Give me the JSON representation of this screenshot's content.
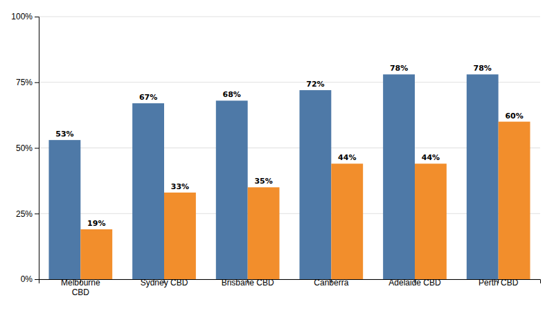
{
  "chart_data": {
    "type": "bar",
    "categories": [
      "Melbourne\nCBD",
      "Sydney CBD",
      "Brisbane CBD",
      "Canberra",
      "Adelaide CBD",
      "Perth CBD"
    ],
    "series": [
      {
        "values": [
          53,
          67,
          68,
          72,
          78,
          78
        ],
        "value_labels": [
          "53%",
          "67%",
          "68%",
          "72%",
          "78%",
          "78%"
        ]
      },
      {
        "values": [
          19,
          33,
          35,
          44,
          44,
          60
        ],
        "value_labels": [
          "19%",
          "33%",
          "35%",
          "44%",
          "44%",
          "60%"
        ]
      }
    ],
    "ylim": [
      0,
      100
    ],
    "yticks": [
      {
        "value": 0,
        "label": "0%"
      },
      {
        "value": 25,
        "label": "25%"
      },
      {
        "value": 50,
        "label": "50%"
      },
      {
        "value": 75,
        "label": "75%"
      },
      {
        "value": 100,
        "label": "100%"
      }
    ],
    "grid": true,
    "data_labels": true
  }
}
